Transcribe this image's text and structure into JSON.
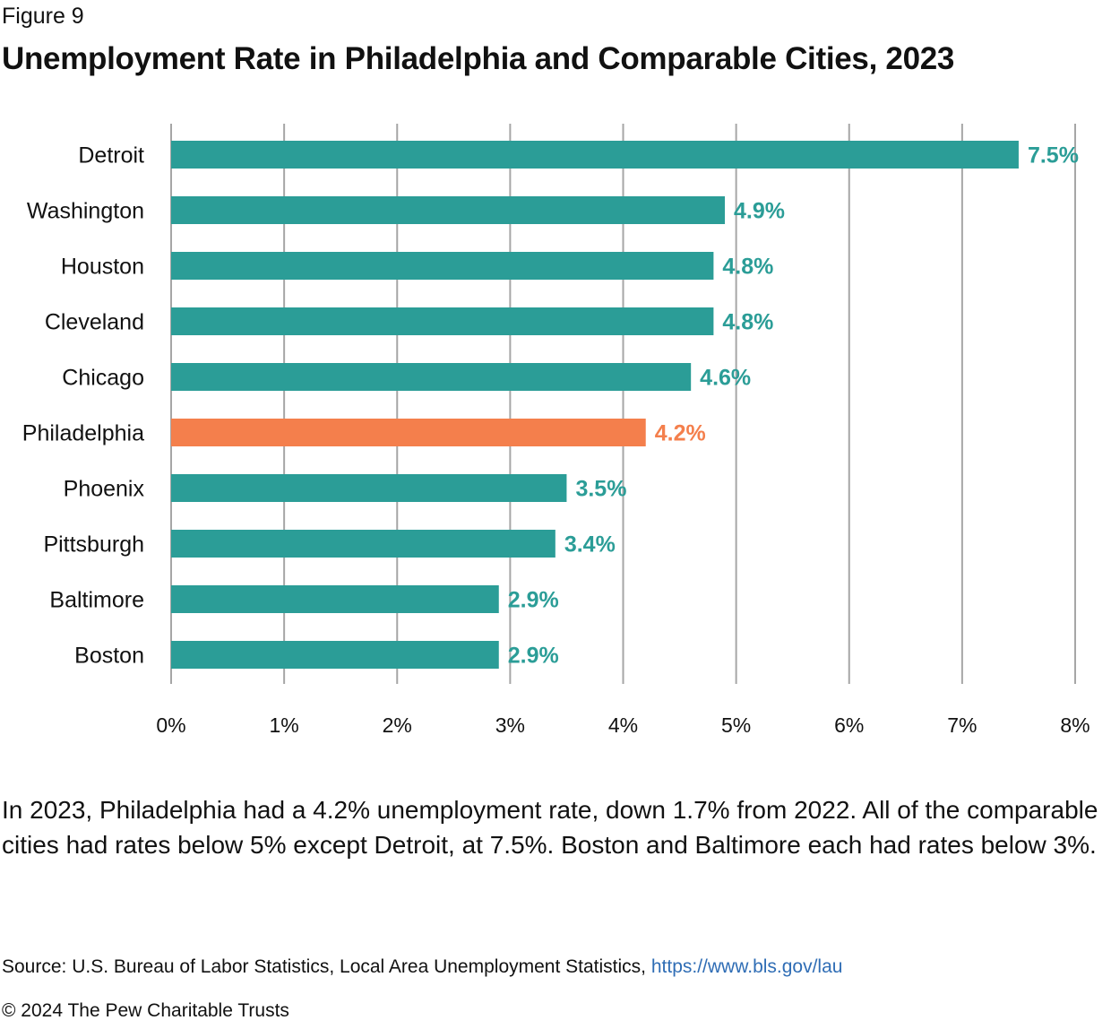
{
  "figure_label": "Figure 9",
  "title": "Unemployment Rate in Philadelphia and Comparable Cities, 2023",
  "caption": "In 2023, Philadelphia had a 4.2% unemployment rate, down 1.7% from 2022. All of the comparable cities had rates below 5% except Detroit, at 7.5%. Boston and Baltimore each had rates below 3%.",
  "source": {
    "text": "Source: U.S. Bureau of Labor Statistics, Local Area Unemployment Statistics,",
    "link": "https://www.bls.gov/lau"
  },
  "copyright": "© 2024 The Pew Charitable Trusts",
  "colors": {
    "default_bar": "#2b9d97",
    "highlight_bar": "#f47f4c",
    "grid": "#a6a6a6"
  },
  "chart_data": {
    "type": "bar",
    "orientation": "horizontal",
    "title": "Unemployment Rate in Philadelphia and Comparable Cities, 2023",
    "xlabel": "",
    "ylabel": "",
    "xlim": [
      0,
      8
    ],
    "grid": true,
    "legend": "none",
    "x_ticks": [
      "0%",
      "1%",
      "2%",
      "3%",
      "4%",
      "5%",
      "6%",
      "7%",
      "8%"
    ],
    "categories": [
      "Detroit",
      "Washington",
      "Houston",
      "Cleveland",
      "Chicago",
      "Philadelphia",
      "Phoenix",
      "Pittsburgh",
      "Baltimore",
      "Boston"
    ],
    "values": [
      7.5,
      4.9,
      4.8,
      4.8,
      4.6,
      4.2,
      3.5,
      3.4,
      2.9,
      2.9
    ],
    "labels": [
      "7.5%",
      "4.9%",
      "4.8%",
      "4.8%",
      "4.6%",
      "4.2%",
      "3.5%",
      "3.4%",
      "2.9%",
      "2.9%"
    ],
    "highlight": "Philadelphia"
  }
}
